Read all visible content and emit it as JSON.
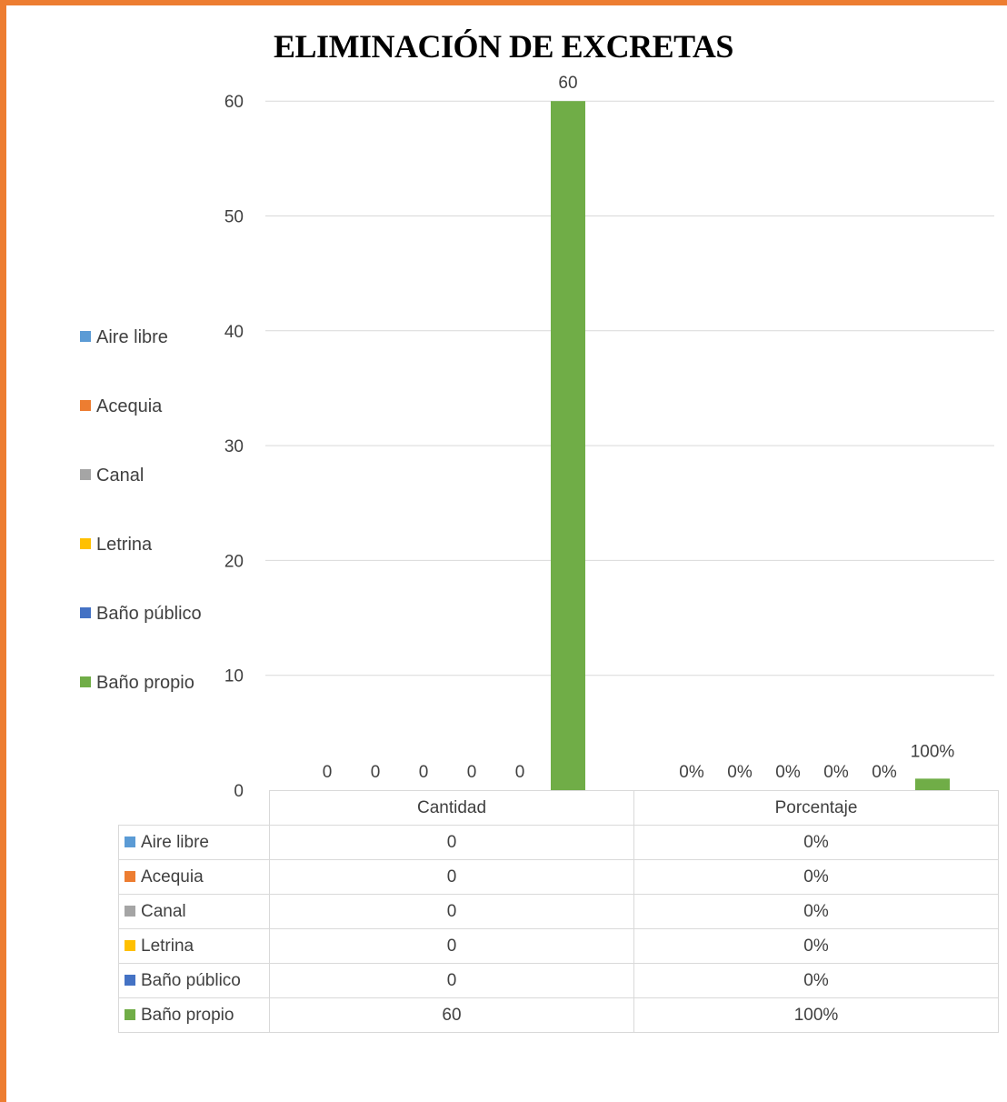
{
  "chart_data": {
    "type": "bar",
    "title": "ELIMINACIÓN DE EXCRETAS",
    "categories": [
      "Cantidad",
      "Porcentaje"
    ],
    "ylim": [
      0,
      60
    ],
    "yticks": [
      "0",
      "10",
      "20",
      "30",
      "40",
      "50",
      "60"
    ],
    "grid": true,
    "legend_position": "left",
    "series": [
      {
        "name": "Aire libre",
        "color": "#5B9BD5",
        "values": [
          0,
          0
        ],
        "labels": [
          "0",
          "0%"
        ]
      },
      {
        "name": "Acequia",
        "color": "#ED7D31",
        "values": [
          0,
          0
        ],
        "labels": [
          "0",
          "0%"
        ]
      },
      {
        "name": "Canal",
        "color": "#A5A5A5",
        "values": [
          0,
          0
        ],
        "labels": [
          "0",
          "0%"
        ]
      },
      {
        "name": "Letrina",
        "color": "#FFC000",
        "values": [
          0,
          0
        ],
        "labels": [
          "0",
          "0%"
        ]
      },
      {
        "name": "Baño público",
        "color": "#4472C4",
        "values": [
          0,
          0
        ],
        "labels": [
          "0",
          "0%"
        ]
      },
      {
        "name": "Baño propio",
        "color": "#70AD47",
        "values": [
          60,
          1
        ],
        "labels": [
          "60",
          "100%"
        ]
      }
    ]
  }
}
